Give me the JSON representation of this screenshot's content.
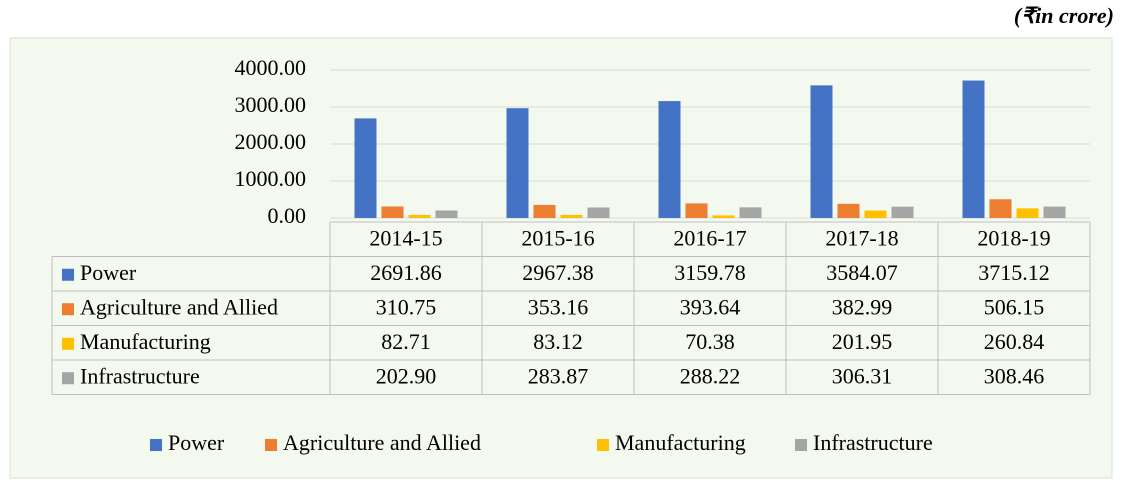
{
  "chart_data": {
    "type": "bar",
    "annotation": "(₹in crore)",
    "categories": [
      "2014-15",
      "2015-16",
      "2016-17",
      "2017-18",
      "2018-19"
    ],
    "series": [
      {
        "name": "Power",
        "color": "#4472c4",
        "values": [
          2691.86,
          2967.38,
          3159.78,
          3584.07,
          3715.12
        ],
        "value_labels": [
          "2691.86",
          "2967.38",
          "3159.78",
          "3584.07",
          "3715.12"
        ]
      },
      {
        "name": "Agriculture and Allied",
        "color": "#ed7d31",
        "values": [
          310.75,
          353.16,
          393.64,
          382.99,
          506.15
        ],
        "value_labels": [
          "310.75",
          "353.16",
          "393.64",
          "382.99",
          "506.15"
        ]
      },
      {
        "name": "Manufacturing",
        "color": "#ffc000",
        "values": [
          82.71,
          83.12,
          70.38,
          201.95,
          260.84
        ],
        "value_labels": [
          "82.71",
          "83.12",
          "70.38",
          "201.95",
          "260.84"
        ]
      },
      {
        "name": "Infrastructure",
        "color": "#a5a5a5",
        "values": [
          202.9,
          283.87,
          288.22,
          306.31,
          308.46
        ],
        "value_labels": [
          "202.90",
          "283.87",
          "288.22",
          "306.31",
          "308.46"
        ]
      }
    ],
    "ylim": [
      0,
      4000
    ],
    "yticks": [
      {
        "value": 0,
        "label": "0.00"
      },
      {
        "value": 1000,
        "label": "1000.00"
      },
      {
        "value": 2000,
        "label": "2000.00"
      },
      {
        "value": 3000,
        "label": "3000.00"
      },
      {
        "value": 4000,
        "label": "4000.00"
      }
    ],
    "grid": true,
    "legend": "bottom"
  }
}
